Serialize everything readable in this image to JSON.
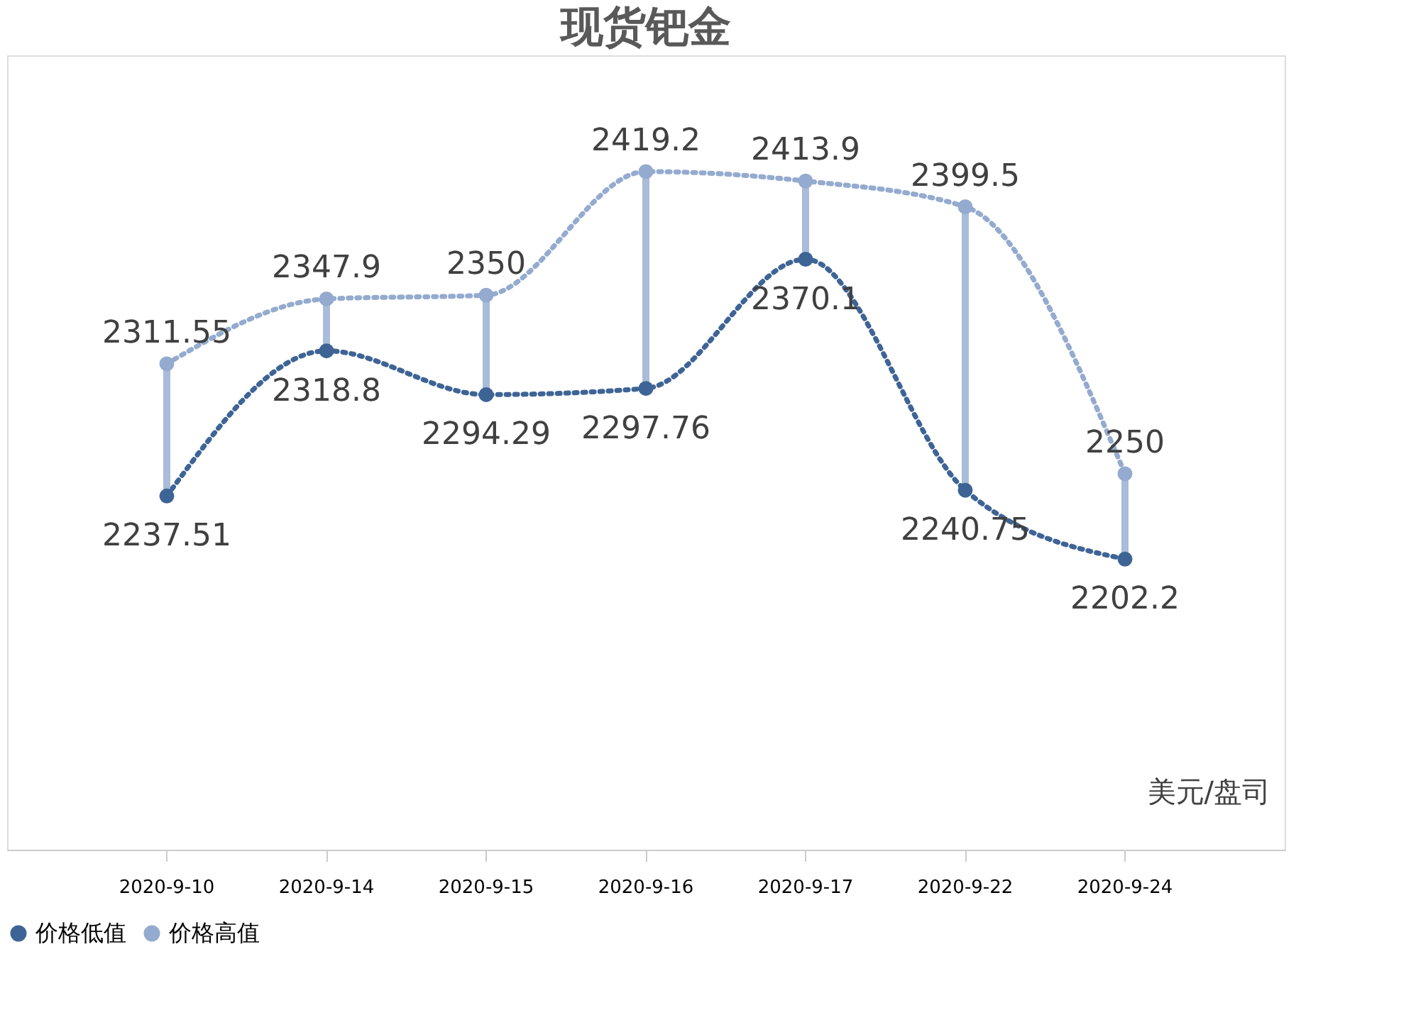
{
  "chart_data": {
    "type": "line",
    "title": "现货钯金",
    "categories": [
      "2020-9-10",
      "2020-9-14",
      "2020-9-15",
      "2020-9-16",
      "2020-9-17",
      "2020-9-22",
      "2020-9-24"
    ],
    "series": [
      {
        "name": "价格低值",
        "color": "#3e6496",
        "values": [
          2237.51,
          2318.8,
          2294.29,
          2297.76,
          2370.1,
          2240.75,
          2202.2
        ]
      },
      {
        "name": "价格高值",
        "color": "#94abcf",
        "values": [
          2311.55,
          2347.9,
          2350,
          2419.2,
          2413.9,
          2399.5,
          2250
        ]
      }
    ],
    "annotations": [
      "美元/盘司"
    ],
    "data_labels": true,
    "legend": "bottom",
    "grid": false,
    "marker": "circle",
    "line_style": "dotted"
  }
}
